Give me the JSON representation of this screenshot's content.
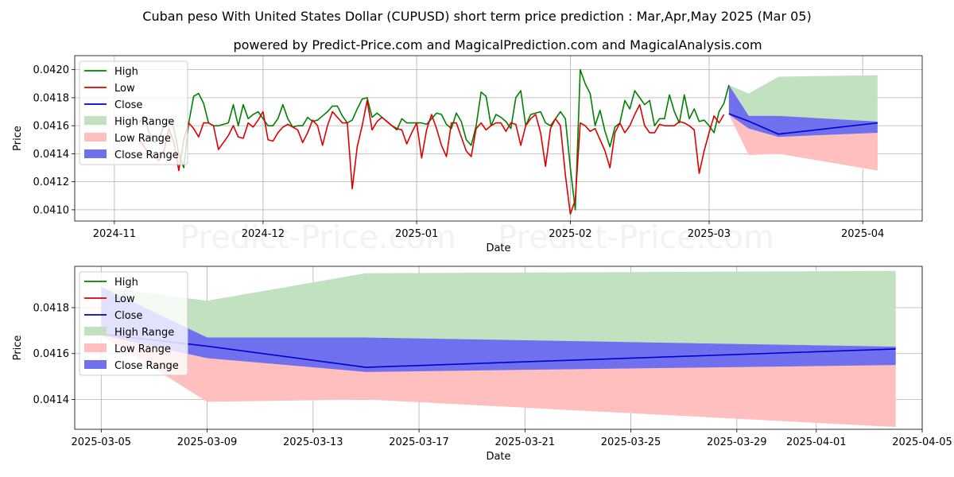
{
  "title": "Cuban peso With United States Dollar (CUPUSD) short term price prediction : Mar,Apr,May 2025 (Mar 05)",
  "subtitle": "powered by Predict-Price.com and MagicalPrediction.com and MagicalAnalysis.com",
  "watermark": "Predict-Price.com",
  "colors": {
    "high": "#008000",
    "low": "#dd0000",
    "close": "#0000cc",
    "high_range": "#c1e1c1",
    "low_range": "#ffbfbf",
    "close_range": "#7070ee",
    "grid": "#b0b0b0"
  },
  "chart_data": [
    {
      "type": "line",
      "xlabel": "Date",
      "ylabel": "Price",
      "xlim": [
        "2024-10-24",
        "2025-04-13"
      ],
      "ylim": [
        0.04092,
        0.0421
      ],
      "yticks": [
        {
          "value": 0.041,
          "label": "0.0410"
        },
        {
          "value": 0.0412,
          "label": "0.0412"
        },
        {
          "value": 0.0414,
          "label": "0.0414"
        },
        {
          "value": 0.0416,
          "label": "0.0416"
        },
        {
          "value": 0.0418,
          "label": "0.0418"
        },
        {
          "value": 0.042,
          "label": "0.0420"
        }
      ],
      "xticks": [
        {
          "date": "2024-11-01",
          "label": "2024-11"
        },
        {
          "date": "2024-12-01",
          "label": "2024-12"
        },
        {
          "date": "2025-01-01",
          "label": "2025-01"
        },
        {
          "date": "2025-02-01",
          "label": "2025-02"
        },
        {
          "date": "2025-03-01",
          "label": "2025-03"
        },
        {
          "date": "2025-04-01",
          "label": "2025-04"
        }
      ],
      "legend": [
        "High",
        "Low",
        "Close",
        "High Range",
        "Low Range",
        "Close Range"
      ],
      "legend_position": "top-left",
      "history_start": "2024-11-06",
      "history_high": [
        0.04162,
        0.04167,
        0.04155,
        0.04148,
        0.0415,
        0.0416,
        0.04165,
        0.04158,
        0.0414,
        0.0413,
        0.04162,
        0.04181,
        0.04183,
        0.04176,
        0.04162,
        0.0416,
        0.0416,
        0.04161,
        0.04162,
        0.04175,
        0.0416,
        0.04175,
        0.04165,
        0.04168,
        0.0417,
        0.04165,
        0.0416,
        0.0416,
        0.04165,
        0.04175,
        0.04165,
        0.04159,
        0.0416,
        0.0416,
        0.04166,
        0.04163,
        0.04164,
        0.04167,
        0.0417,
        0.04174,
        0.04174,
        0.04167,
        0.04162,
        0.04164,
        0.04172,
        0.04179,
        0.0418,
        0.04166,
        0.04169,
        0.04166,
        0.04163,
        0.0416,
        0.04157,
        0.04165,
        0.04162,
        0.04162,
        0.04162,
        0.04162,
        0.04161,
        0.04165,
        0.04169,
        0.04168,
        0.04161,
        0.04158,
        0.04169,
        0.04163,
        0.0415,
        0.04146,
        0.0416,
        0.04184,
        0.04181,
        0.0416,
        0.04168,
        0.04166,
        0.04163,
        0.04158,
        0.0418,
        0.04185,
        0.0416,
        0.04168,
        0.04169,
        0.0417,
        0.04162,
        0.0416,
        0.04165,
        0.0417,
        0.04165,
        0.0413,
        0.041,
        0.042,
        0.0419,
        0.04183,
        0.0416,
        0.04171,
        0.04156,
        0.04145,
        0.04159,
        0.04162,
        0.04178,
        0.04172,
        0.04185,
        0.0418,
        0.04175,
        0.04178,
        0.0416,
        0.04165,
        0.04165,
        0.04182,
        0.0417,
        0.04162,
        0.04182,
        0.04165,
        0.04172,
        0.04163,
        0.04164,
        0.0416,
        0.04155,
        0.0417,
        0.04176,
        0.04189
      ],
      "history_low": [
        0.0415,
        0.04145,
        0.0414,
        0.04138,
        0.04135,
        0.04142,
        0.04158,
        0.04148,
        0.04128,
        0.0415,
        0.04162,
        0.04158,
        0.04152,
        0.04162,
        0.04162,
        0.0416,
        0.04143,
        0.04148,
        0.04153,
        0.0416,
        0.04152,
        0.04151,
        0.04162,
        0.04159,
        0.04164,
        0.0417,
        0.0415,
        0.04149,
        0.04155,
        0.04159,
        0.04161,
        0.04159,
        0.04157,
        0.04148,
        0.04155,
        0.04164,
        0.0416,
        0.04146,
        0.0416,
        0.0417,
        0.04166,
        0.04162,
        0.04162,
        0.04115,
        0.04145,
        0.0416,
        0.04178,
        0.04157,
        0.04163,
        0.04166,
        0.04163,
        0.0416,
        0.04158,
        0.04157,
        0.04147,
        0.04155,
        0.04162,
        0.04137,
        0.04157,
        0.04168,
        0.04158,
        0.04146,
        0.04138,
        0.04162,
        0.04162,
        0.04152,
        0.04142,
        0.04138,
        0.04158,
        0.04162,
        0.04157,
        0.0416,
        0.04162,
        0.04162,
        0.04156,
        0.04162,
        0.04161,
        0.04146,
        0.0416,
        0.04165,
        0.04168,
        0.04155,
        0.04131,
        0.04158,
        0.04165,
        0.0416,
        0.04125,
        0.04097,
        0.04107,
        0.04162,
        0.0416,
        0.04156,
        0.04158,
        0.0415,
        0.04142,
        0.0413,
        0.04155,
        0.04162,
        0.04155,
        0.0416,
        0.04168,
        0.04175,
        0.0416,
        0.04155,
        0.04155,
        0.04161,
        0.0416,
        0.0416,
        0.0416,
        0.04163,
        0.04162,
        0.0416,
        0.04157,
        0.04126,
        0.04142,
        0.04155,
        0.04167,
        0.04162,
        0.04168
      ],
      "history_close_segment": [
        [
          "2025-03-05",
          0.041685
        ],
        [
          "2025-03-09",
          0.041632
        ],
        [
          "2025-03-15",
          0.04154
        ],
        [
          "2025-04-04",
          0.04162
        ]
      ],
      "forecast": {
        "dates": [
          "2025-03-05",
          "2025-03-09",
          "2025-03-15",
          "2025-04-04"
        ],
        "high_range": {
          "upper": [
            0.04189,
            0.04183,
            0.04195,
            0.04196
          ],
          "lower": [
            0.04168,
            0.04167,
            0.04167,
            0.04163
          ]
        },
        "low_range": {
          "upper": [
            0.04168,
            0.04163,
            0.0416,
            0.04155
          ],
          "lower": [
            0.04168,
            0.04139,
            0.0414,
            0.04128
          ]
        },
        "close_range": {
          "upper": [
            0.04189,
            0.04167,
            0.04167,
            0.04163
          ],
          "lower": [
            0.04168,
            0.04158,
            0.04152,
            0.04155
          ]
        },
        "close": [
          0.041685,
          0.041632,
          0.04154,
          0.04162
        ]
      }
    },
    {
      "type": "line",
      "xlabel": "Date",
      "ylabel": "Price",
      "xlim": [
        "2025-03-04",
        "2025-04-05"
      ],
      "ylim": [
        0.04127,
        0.04198
      ],
      "yticks": [
        {
          "value": 0.0414,
          "label": "0.0414"
        },
        {
          "value": 0.0416,
          "label": "0.0416"
        },
        {
          "value": 0.0418,
          "label": "0.0418"
        }
      ],
      "xticks": [
        {
          "date": "2025-03-05",
          "label": "2025-03-05"
        },
        {
          "date": "2025-03-09",
          "label": "2025-03-09"
        },
        {
          "date": "2025-03-13",
          "label": "2025-03-13"
        },
        {
          "date": "2025-03-17",
          "label": "2025-03-17"
        },
        {
          "date": "2025-03-21",
          "label": "2025-03-21"
        },
        {
          "date": "2025-03-25",
          "label": "2025-03-25"
        },
        {
          "date": "2025-03-29",
          "label": "2025-03-29"
        },
        {
          "date": "2025-04-01",
          "label": "2025-04-01"
        },
        {
          "date": "2025-04-05",
          "label": "2025-04-05"
        }
      ],
      "legend": [
        "High",
        "Low",
        "Close",
        "High Range",
        "Low Range",
        "Close Range"
      ],
      "legend_position": "top-left",
      "forecast": {
        "dates": [
          "2025-03-05",
          "2025-03-09",
          "2025-03-15",
          "2025-04-04"
        ],
        "high_range": {
          "upper": [
            0.04189,
            0.04183,
            0.04195,
            0.04196
          ],
          "lower": [
            0.04168,
            0.04167,
            0.04167,
            0.04163
          ]
        },
        "low_range": {
          "upper": [
            0.04168,
            0.04163,
            0.0416,
            0.04155
          ],
          "lower": [
            0.04168,
            0.04139,
            0.0414,
            0.04128
          ]
        },
        "close_range": {
          "upper": [
            0.04189,
            0.04167,
            0.04167,
            0.04163
          ],
          "lower": [
            0.04168,
            0.04158,
            0.04152,
            0.04155
          ]
        },
        "close": [
          0.041685,
          0.041632,
          0.04154,
          0.04162
        ]
      }
    }
  ]
}
